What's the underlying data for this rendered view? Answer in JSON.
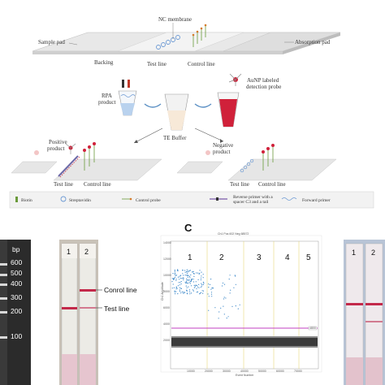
{
  "schematic": {
    "nc_membrane": "NC membrane",
    "sample_pad": "Sample pad",
    "absorption_pad": "Absorption pad",
    "backing": "Backing",
    "test_line": "Test line",
    "control_line": "Control line",
    "rpa_product": "RPA\nproduct",
    "aunp_probe": "AuNP labeled\ndetection probe",
    "te_buffer": "TE Buffer",
    "positive_product": "Positive\nproduct",
    "negative_product": "Negative\nproduct",
    "test_line_2": "Test line",
    "control_line_2": "Control line",
    "test_line_3": "Test line",
    "control_line_3": "Control line"
  },
  "legend": {
    "biotin": "Biotin",
    "streptavidin": "Streptavidin",
    "control_probe": "Control probe",
    "reverse_primer": "Reverse primer with a\nspacer C3 and a tail",
    "forward_primer": "Forward primer"
  },
  "gel": {
    "unit": "bp",
    "ladder": [
      "600",
      "500",
      "400",
      "300",
      "200",
      "100"
    ]
  },
  "strip_panel": {
    "lane1": "1",
    "lane2": "2",
    "control_label": "Conrol line",
    "test_label": "Test line"
  },
  "panel_c": {
    "label": "C",
    "plot_title": "Ch1 Pos 602 Neg 68572",
    "ylabel": "Ch1 Amplitude",
    "xlabel": "Event Number",
    "lanes": [
      "1",
      "2",
      "3",
      "4",
      "5"
    ],
    "y_ticks": [
      "14000",
      "12000",
      "10000",
      "8000",
      "6000",
      "4000",
      "2000"
    ],
    "x_ticks": [
      "10000",
      "20000",
      "30000",
      "40000",
      "50000",
      "60000",
      "70000"
    ],
    "threshold_label": "4800"
  },
  "right_strips": {
    "lane1": "1",
    "lane2": "2"
  },
  "colors": {
    "strip_red": "#c3294a",
    "probe_red": "#d0213a",
    "gel_bg": "#2b2b2b",
    "positive_droplets": "#3a87c8",
    "negative_droplets": "#2a2a2a",
    "threshold": "#c040c0"
  }
}
